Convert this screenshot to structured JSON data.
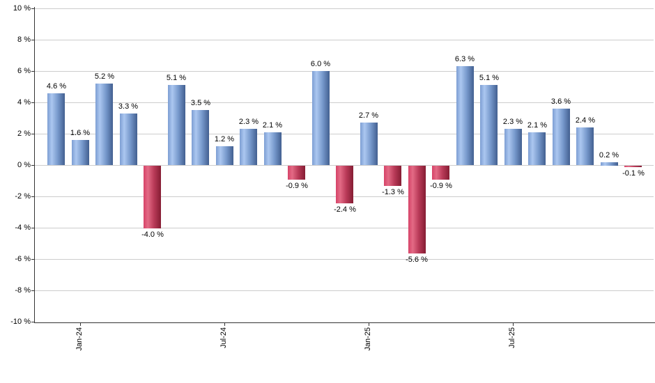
{
  "chart_data": {
    "type": "bar",
    "title": "",
    "unit": "%",
    "values": [
      4.6,
      1.6,
      5.2,
      3.3,
      -4.0,
      5.1,
      3.5,
      1.2,
      2.3,
      2.1,
      -0.9,
      6.0,
      -2.4,
      2.7,
      -1.3,
      -5.6,
      -0.9,
      6.3,
      5.1,
      2.3,
      2.1,
      3.6,
      2.4,
      0.2,
      -0.1
    ],
    "bar_labels": [
      "4.6 %",
      "1.6 %",
      "5.2 %",
      "3.3 %",
      "-4.0 %",
      "5.1 %",
      "3.5 %",
      "1.2 %",
      "2.3 %",
      "2.1 %",
      "-0.9 %",
      "6.0 %",
      "-2.4 %",
      "2.7 %",
      "-1.3 %",
      "-5.6 %",
      "-0.9 %",
      "6.3 %",
      "5.1 %",
      "2.3 %",
      "2.1 %",
      "3.6 %",
      "2.4 %",
      "0.2 %",
      "-0.1 %"
    ],
    "x_ticks": [
      {
        "bar_index": 1,
        "label": "Jan-24"
      },
      {
        "bar_index": 7,
        "label": "Jul-24"
      },
      {
        "bar_index": 13,
        "label": "Jan-25"
      },
      {
        "bar_index": 19,
        "label": "Jul-25"
      }
    ],
    "y_ticks": [
      {
        "value": 10,
        "label": "10 %"
      },
      {
        "value": 8,
        "label": "8 %"
      },
      {
        "value": 6,
        "label": "6 %"
      },
      {
        "value": 4,
        "label": "4 %"
      },
      {
        "value": 2,
        "label": "2 %"
      },
      {
        "value": 0,
        "label": "0 %"
      },
      {
        "value": -2,
        "label": "-2 %"
      },
      {
        "value": -4,
        "label": "-4 %"
      },
      {
        "value": -6,
        "label": "-6 %"
      },
      {
        "value": -8,
        "label": "-8 %"
      },
      {
        "value": -10,
        "label": "-10 %"
      }
    ],
    "ylim": [
      -10,
      10
    ],
    "grid": true,
    "legend": null,
    "colors": {
      "positive_edge": "#7d9ed3",
      "positive_highlight": "#abc7f0",
      "positive_mid": "#7799cc",
      "positive_dark": "#425f90",
      "negative_edge": "#d64368",
      "negative_highlight": "#e36a85",
      "negative_mid": "#b93a58",
      "negative_dark": "#851d33",
      "gridline": "#cccccc",
      "axis": "#333333",
      "text": "#000000",
      "background": "#ffffff"
    }
  }
}
